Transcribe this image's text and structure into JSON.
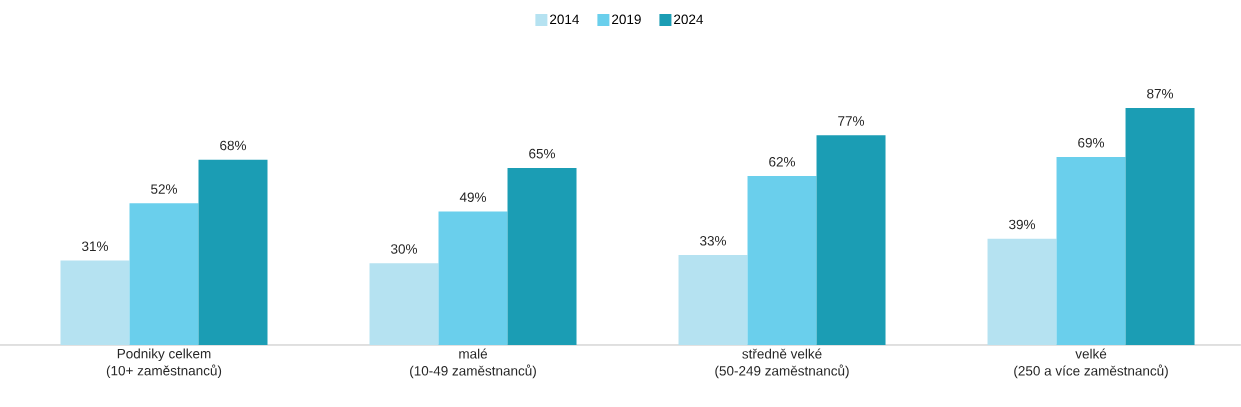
{
  "chart_data": {
    "type": "bar",
    "categories": [
      "Podniky celkem\n(10+ zaměstnanců)",
      "malé\n(10-49 zaměstnanců)",
      "středně velké\n(50-249 zaměstnanců)",
      "velké\n(250 a více zaměstnanců)"
    ],
    "series": [
      {
        "name": "2014",
        "color": "#b5e2f1",
        "values": [
          31,
          30,
          33,
          39
        ],
        "value_labels": [
          "31%",
          "30%",
          "33%",
          "39%"
        ]
      },
      {
        "name": "2019",
        "color": "#6acfec",
        "values": [
          52,
          49,
          62,
          69
        ],
        "value_labels": [
          "52%",
          "49%",
          "62%",
          "69%"
        ]
      },
      {
        "name": "2024",
        "color": "#1b9db4",
        "values": [
          68,
          65,
          77,
          87
        ],
        "value_labels": [
          "68%",
          "65%",
          "77%",
          "87%"
        ]
      }
    ],
    "legend": "top",
    "tick_labels": "x"
  }
}
